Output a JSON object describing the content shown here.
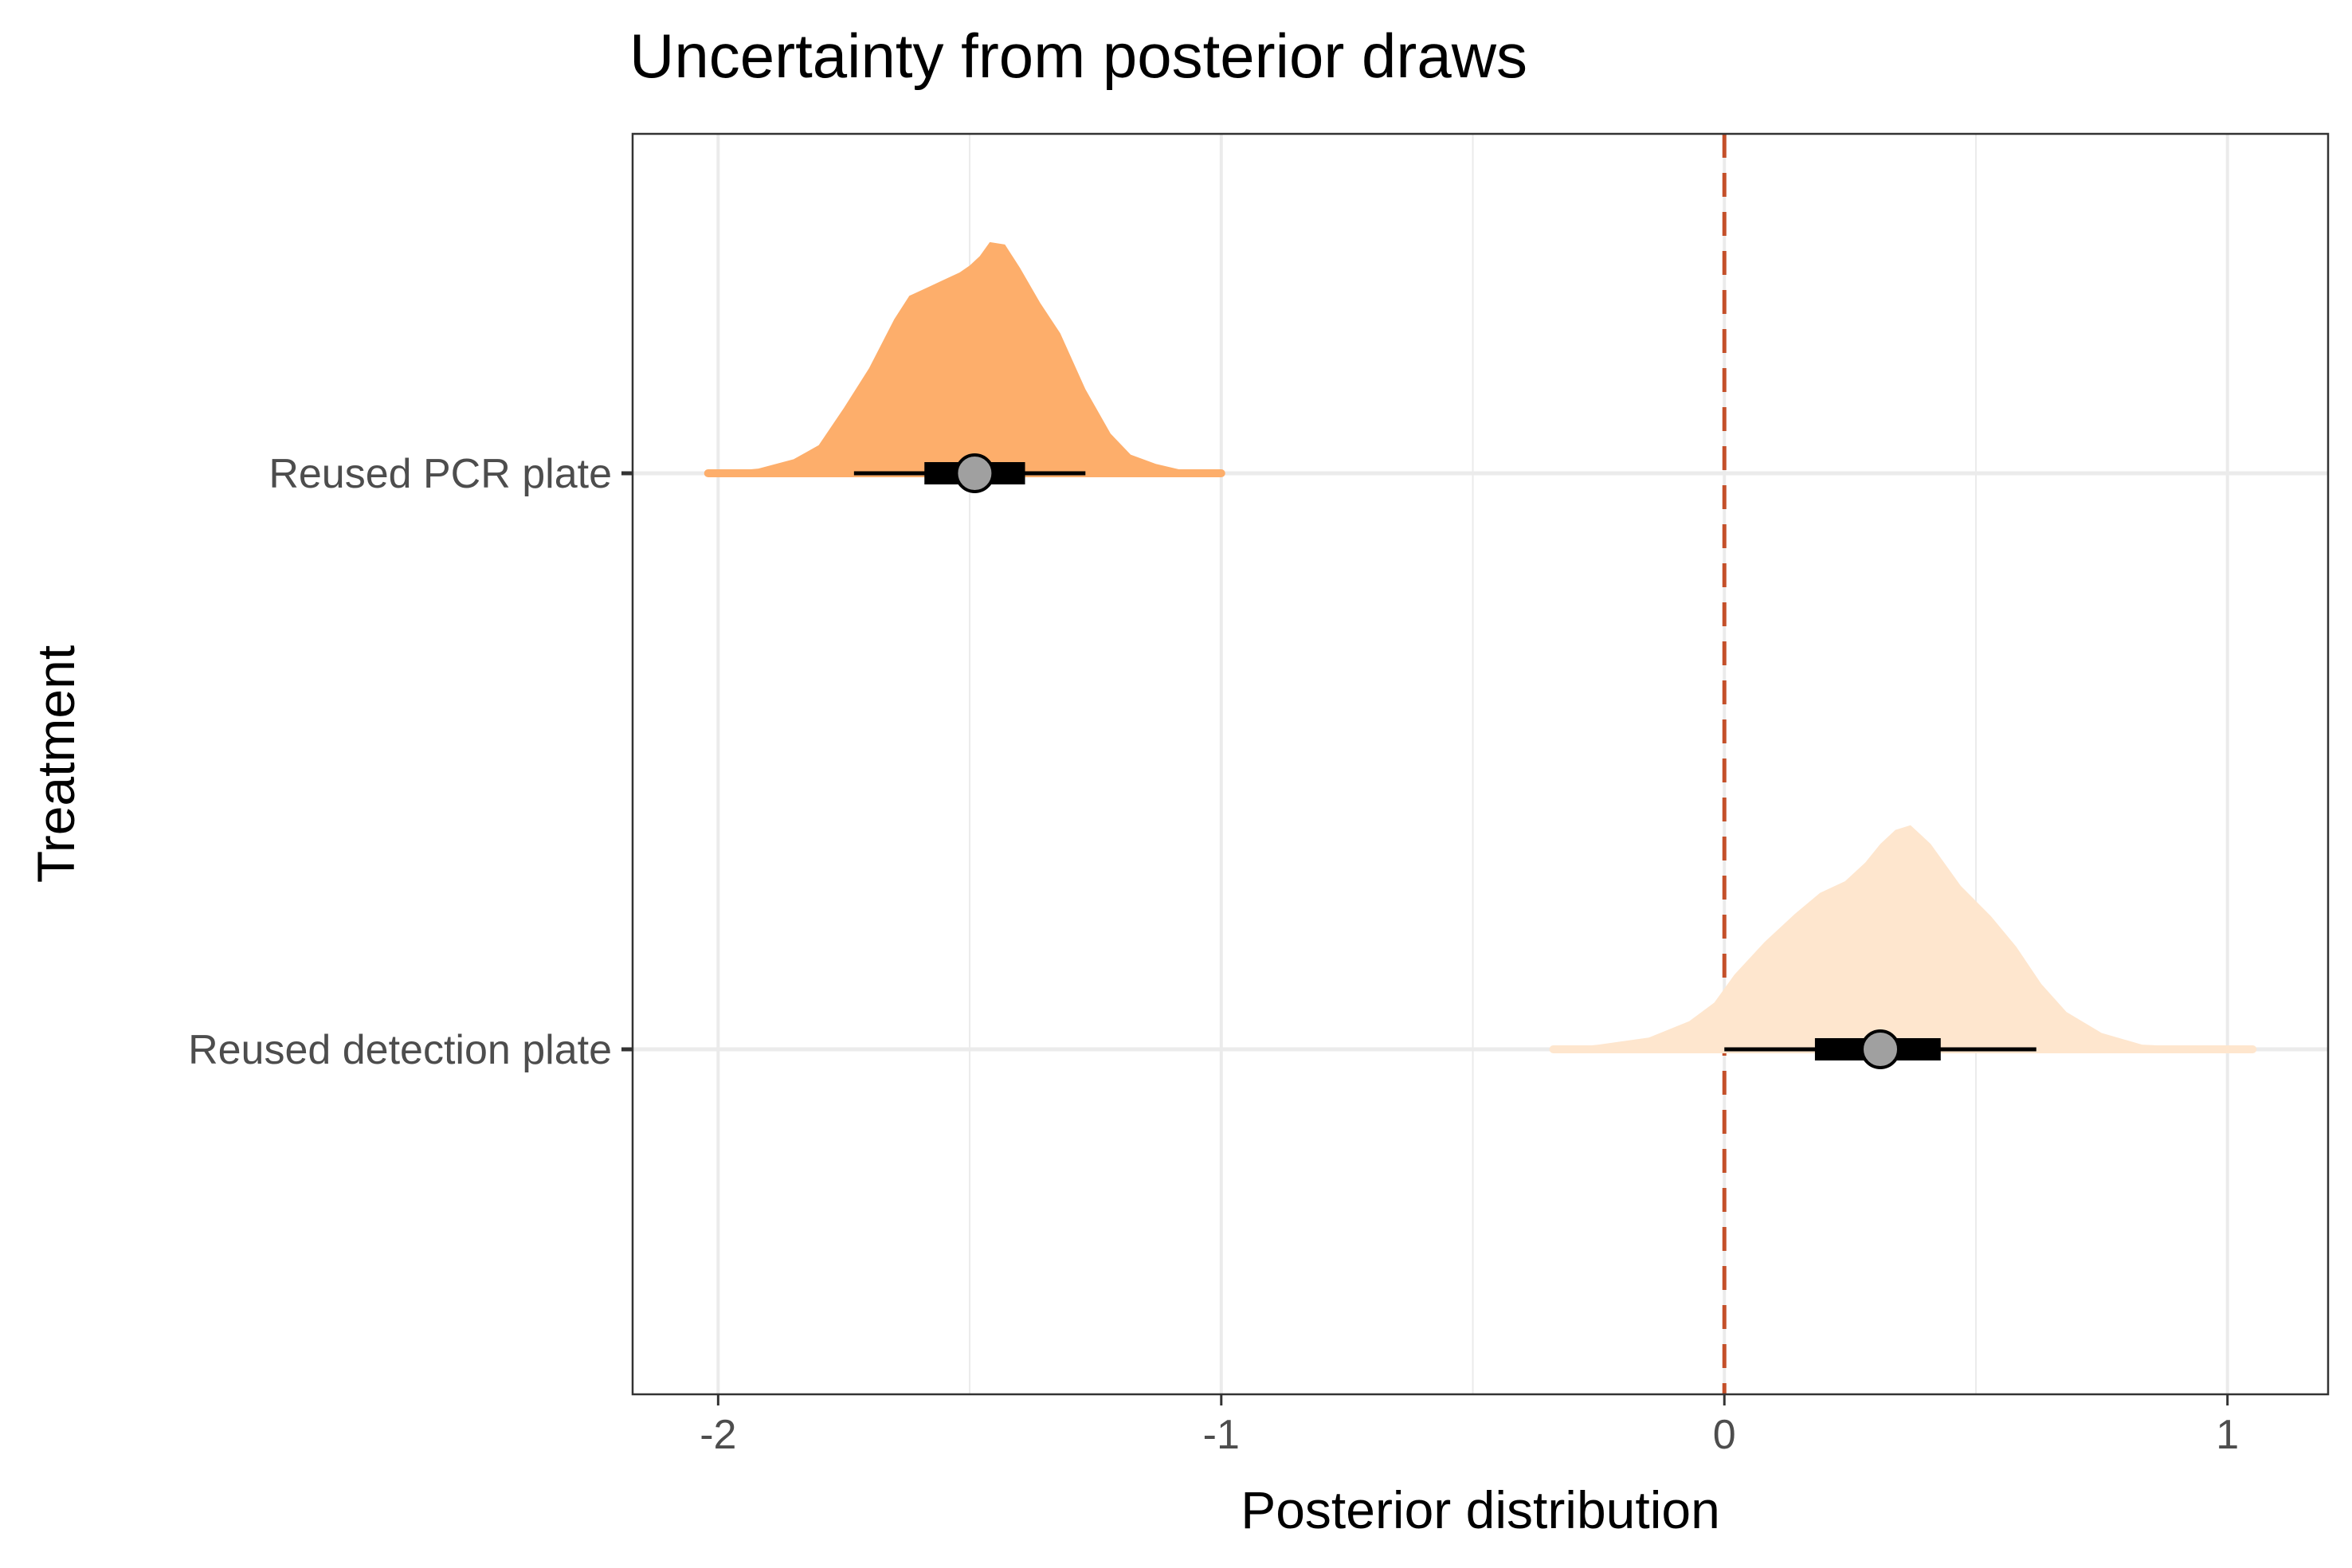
{
  "chart_data": {
    "type": "halfeye",
    "title": "Uncertainty from posterior draws",
    "xlabel": "Posterior distribution",
    "ylabel": "Treatment",
    "xlim": [
      -2.17,
      1.2
    ],
    "x_ticks": [
      -2,
      -1,
      0,
      1
    ],
    "x_tick_labels": [
      "-2",
      "-1",
      "0",
      "1"
    ],
    "categories": [
      "Reused PCR plate",
      "Reused detection plate"
    ],
    "reference_line": {
      "x": 0,
      "color": "#c4502a",
      "style": "dashed"
    },
    "grid": true,
    "series": [
      {
        "category": "Reused PCR plate",
        "color": "#fdae6b",
        "median": -1.49,
        "interval_66": [
          -1.59,
          -1.39
        ],
        "interval_95": [
          -1.73,
          -1.27
        ],
        "range": [
          -2.02,
          -1.0
        ],
        "density_x": [
          -2.02,
          -1.92,
          -1.85,
          -1.8,
          -1.75,
          -1.7,
          -1.65,
          -1.62,
          -1.58,
          -1.55,
          -1.52,
          -1.5,
          -1.48,
          -1.46,
          -1.43,
          -1.4,
          -1.36,
          -1.32,
          -1.27,
          -1.22,
          -1.18,
          -1.13,
          -1.07,
          -1.0
        ],
        "density_y": [
          0.0,
          0.02,
          0.06,
          0.12,
          0.28,
          0.45,
          0.66,
          0.76,
          0.8,
          0.83,
          0.86,
          0.89,
          0.93,
          0.99,
          0.98,
          0.88,
          0.73,
          0.6,
          0.36,
          0.17,
          0.08,
          0.04,
          0.01,
          0.0
        ]
      },
      {
        "category": "Reused detection plate",
        "color": "#fee6ce",
        "median": 0.31,
        "interval_66": [
          0.18,
          0.43
        ],
        "interval_95": [
          0.0,
          0.62
        ],
        "range": [
          -0.34,
          1.05
        ],
        "density_x": [
          -0.34,
          -0.25,
          -0.15,
          -0.07,
          -0.02,
          0.02,
          0.08,
          0.14,
          0.19,
          0.24,
          0.28,
          0.31,
          0.34,
          0.37,
          0.41,
          0.47,
          0.53,
          0.58,
          0.63,
          0.68,
          0.75,
          0.83,
          0.93,
          1.05
        ],
        "density_y": [
          0.0,
          0.02,
          0.05,
          0.12,
          0.2,
          0.32,
          0.46,
          0.58,
          0.67,
          0.72,
          0.8,
          0.88,
          0.94,
          0.96,
          0.88,
          0.7,
          0.57,
          0.44,
          0.28,
          0.16,
          0.07,
          0.02,
          0.01,
          0.0
        ]
      }
    ]
  }
}
